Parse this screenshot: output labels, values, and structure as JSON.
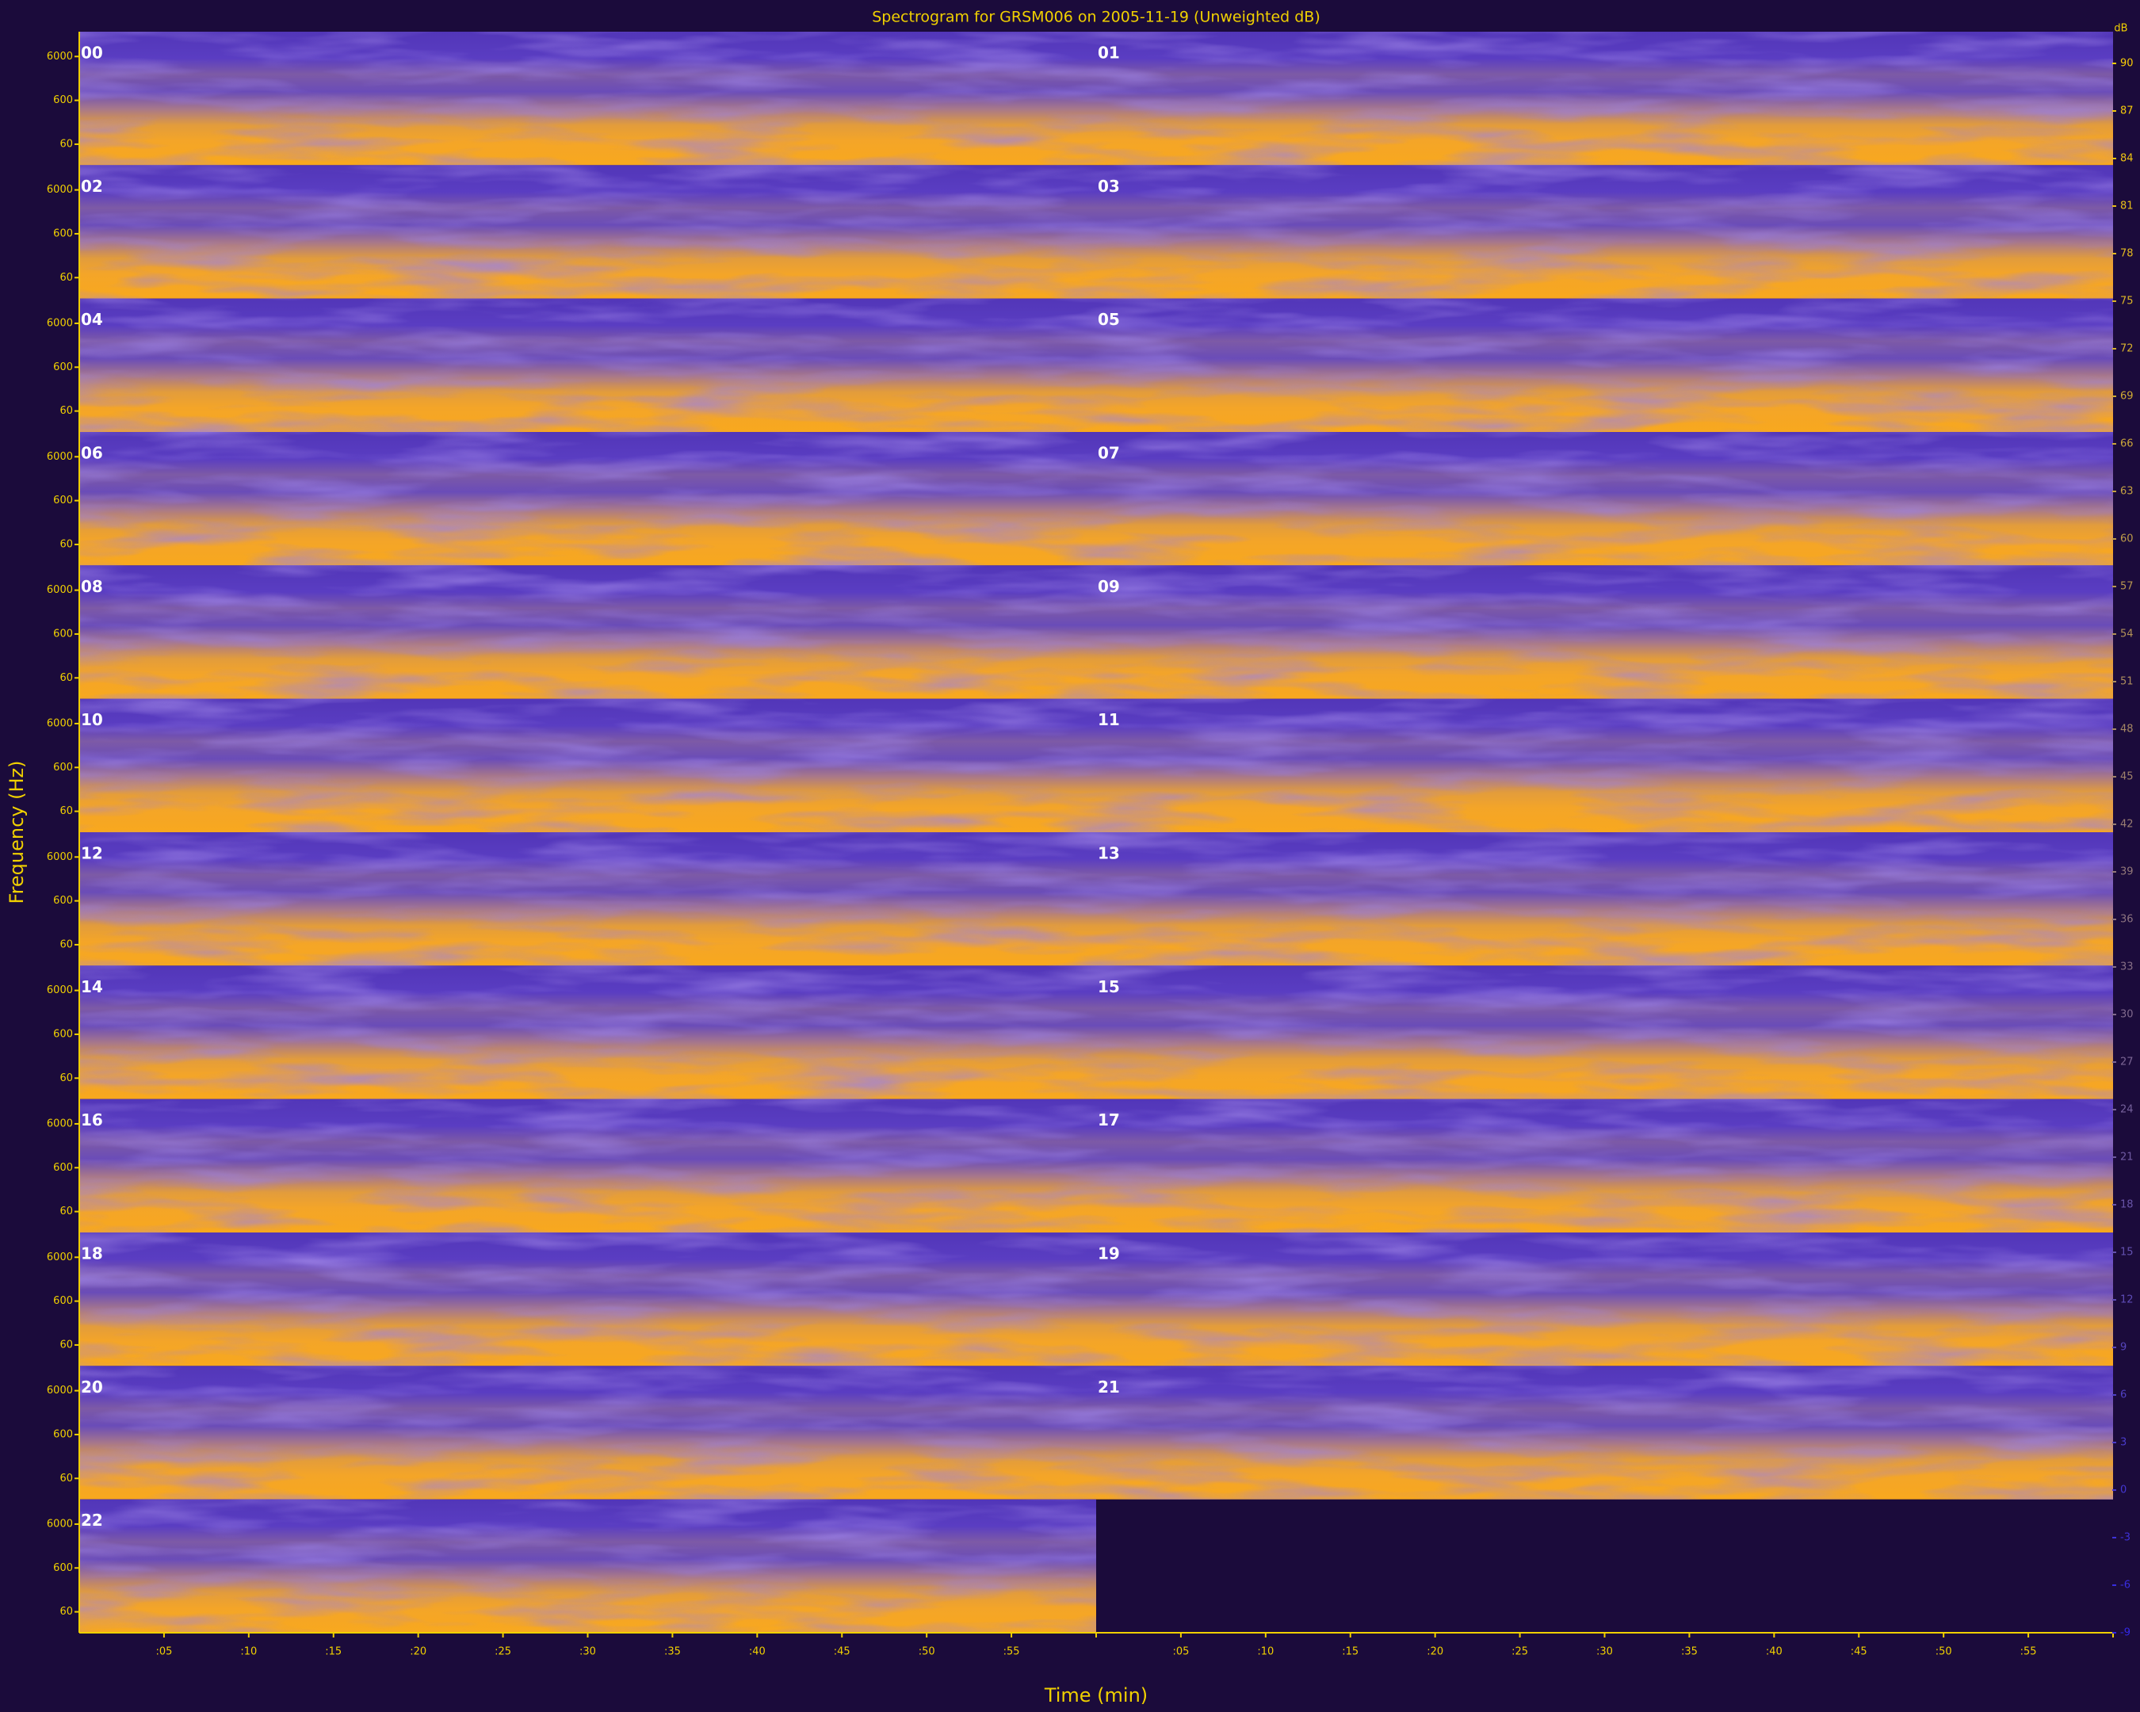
{
  "chart_data": {
    "type": "spectrogram",
    "title": "Spectrogram for GRSM006 on 2005-11-19 (Unweighted dB)",
    "x_label": "Time (min)",
    "y_label": "Frequency (Hz)",
    "hours": [
      "00",
      "01",
      "02",
      "03",
      "04",
      "05",
      "06",
      "07",
      "08",
      "09",
      "10",
      "11",
      "12",
      "13",
      "14",
      "15",
      "16",
      "17",
      "18",
      "19",
      "20",
      "21",
      "22"
    ],
    "ylim": [
      20,
      22050
    ],
    "log_y": true,
    "yticks": [
      6000,
      600,
      60
    ],
    "xlim": [
      0,
      60
    ],
    "xticks": [
      {
        "value": 5,
        "label": ":05"
      },
      {
        "value": 10,
        "label": ":10"
      },
      {
        "value": 15,
        "label": ":15"
      },
      {
        "value": 20,
        "label": ":20"
      },
      {
        "value": 25,
        "label": ":25"
      },
      {
        "value": 30,
        "label": ":30"
      },
      {
        "value": 35,
        "label": ":35"
      },
      {
        "value": 40,
        "label": ":40"
      },
      {
        "value": 45,
        "label": ":45"
      },
      {
        "value": 50,
        "label": ":50"
      },
      {
        "value": 55,
        "label": ":55"
      }
    ],
    "colorbar": {
      "label": "dB",
      "lim": [
        -9,
        92
      ],
      "ticks": [
        90,
        87,
        84,
        81,
        78,
        75,
        72,
        69,
        66,
        63,
        60,
        57,
        54,
        51,
        48,
        45,
        42,
        39,
        36,
        33,
        30,
        27,
        24,
        21,
        18,
        15,
        12,
        9,
        6,
        3,
        0,
        -3,
        -6,
        -9
      ]
    }
  }
}
